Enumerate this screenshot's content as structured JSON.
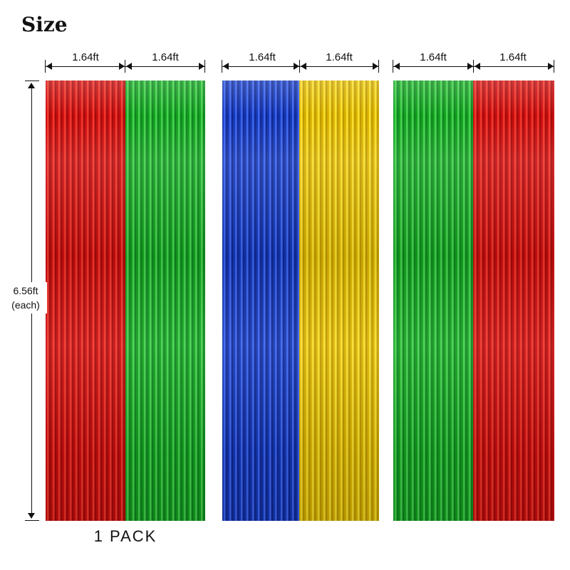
{
  "title": "Size",
  "width_labels": [
    "1.64ft",
    "1.64ft",
    "1.64ft",
    "1.64ft",
    "1.64ft",
    "1.64ft"
  ],
  "height_label_line1": "6.56ft",
  "height_label_line2": "(each)",
  "pack_label": "1 PACK",
  "curtains": [
    {
      "color_name": "red",
      "hex": "#d81010"
    },
    {
      "color_name": "green",
      "hex": "#19ad25"
    },
    {
      "color_name": "blue",
      "hex": "#1a3fc7"
    },
    {
      "color_name": "yellow",
      "hex": "#e8c000"
    },
    {
      "color_name": "green",
      "hex": "#19ad25"
    },
    {
      "color_name": "red",
      "hex": "#d81010"
    }
  ]
}
